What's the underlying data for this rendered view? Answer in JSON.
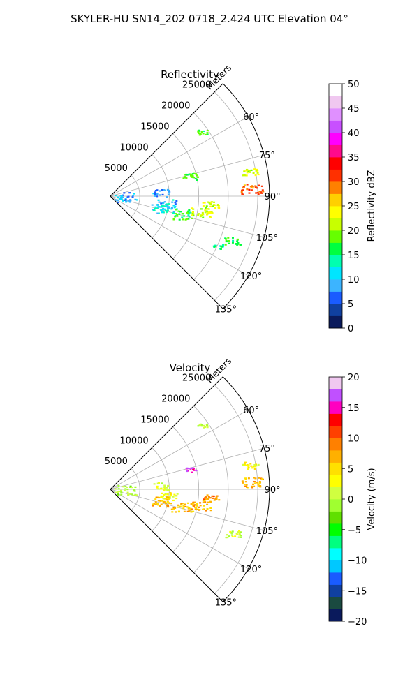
{
  "figure": {
    "title": "SKYLER-HU  SN14_202  0718_2.424 UTC Elevation 04°"
  },
  "chart_data": [
    {
      "type": "heatmap",
      "title": "Reflectivity",
      "projection": "polar sector",
      "radial_axis_label": "Meters",
      "radial_ticks": [
        5000,
        10000,
        15000,
        20000,
        25000
      ],
      "radial_tick_labels": [
        "5000",
        "10000",
        "15000",
        "20000",
        "25000"
      ],
      "rlim": [
        0,
        27000
      ],
      "theta_ticks": [
        60,
        75,
        90,
        105,
        120,
        135
      ],
      "theta_tick_labels": [
        "60°",
        "75°",
        "90°",
        "105°",
        "120°",
        "135°"
      ],
      "theta_range": [
        45,
        135
      ],
      "grid": true,
      "colorbar": {
        "label": "Reflectivity dBZ",
        "range": [
          0,
          50
        ],
        "ticks": [
          0,
          5,
          10,
          15,
          20,
          25,
          30,
          35,
          40,
          45,
          50
        ],
        "tick_labels": [
          "0",
          "5",
          "10",
          "15",
          "20",
          "25",
          "30",
          "35",
          "40",
          "45",
          "50"
        ],
        "colors": [
          "#0a1a5c",
          "#1040a0",
          "#1a5cff",
          "#3cb4ff",
          "#00e5ff",
          "#00ffb0",
          "#00ff40",
          "#66ff00",
          "#c8ff00",
          "#ffff00",
          "#ffd000",
          "#ff8000",
          "#ff3000",
          "#ff0000",
          "#ff0a8c",
          "#ff00ff",
          "#c850ff",
          "#e090ff",
          "#f0c8f0",
          "#ffffff"
        ]
      },
      "echoes": [
        {
          "azimuth": 98,
          "range": 9500,
          "value": 10,
          "size": 3
        },
        {
          "azimuth": 103,
          "range": 9000,
          "value": 12,
          "size": 3
        },
        {
          "azimuth": 86,
          "range": 8500,
          "value": 8,
          "size": 2
        },
        {
          "azimuth": 104,
          "range": 12500,
          "value": 17,
          "size": 3
        },
        {
          "azimuth": 100,
          "range": 15500,
          "value": 22,
          "size": 3
        },
        {
          "azimuth": 95,
          "range": 17000,
          "value": 22,
          "size": 2
        },
        {
          "azimuth": 87,
          "range": 24000,
          "value": 30,
          "size": 3
        },
        {
          "azimuth": 80,
          "range": 24000,
          "value": 22,
          "size": 2
        },
        {
          "azimuth": 76,
          "range": 14000,
          "value": 17,
          "size": 2
        },
        {
          "azimuth": 110,
          "range": 22000,
          "value": 17,
          "size": 2
        },
        {
          "azimuth": 55,
          "range": 19000,
          "value": 17,
          "size": 1
        },
        {
          "azimuth": 115,
          "range": 20000,
          "value": 14,
          "size": 1
        },
        {
          "azimuth": 92,
          "range": 2500,
          "value": 9,
          "size": 3
        }
      ]
    },
    {
      "type": "heatmap",
      "title": "Velocity",
      "projection": "polar sector",
      "radial_axis_label": "Meters",
      "radial_ticks": [
        5000,
        10000,
        15000,
        20000,
        25000
      ],
      "radial_tick_labels": [
        "5000",
        "10000",
        "15000",
        "20000",
        "25000"
      ],
      "rlim": [
        0,
        27000
      ],
      "theta_ticks": [
        60,
        75,
        90,
        105,
        120,
        135
      ],
      "theta_tick_labels": [
        "60°",
        "75°",
        "90°",
        "105°",
        "120°",
        "135°"
      ],
      "theta_range": [
        45,
        135
      ],
      "grid": true,
      "colorbar": {
        "label": "Velocity (m/s)",
        "range": [
          -20,
          20
        ],
        "ticks": [
          -20,
          -15,
          -10,
          -5,
          0,
          5,
          10,
          15,
          20
        ],
        "tick_labels": [
          "−20",
          "−15",
          "−10",
          "−5",
          "0",
          "5",
          "10",
          "15",
          "20"
        ],
        "colors": [
          "#0a1a5c",
          "#1a4a40",
          "#1040a0",
          "#1a5cff",
          "#00c8ff",
          "#00ffff",
          "#00ff80",
          "#00ff00",
          "#60e000",
          "#a0ff30",
          "#d0ff40",
          "#ffff00",
          "#ffe000",
          "#ffb000",
          "#ff8000",
          "#ff4000",
          "#ff0000",
          "#ff00c0",
          "#c050ff",
          "#f0c8f0"
        ]
      },
      "echoes": [
        {
          "azimuth": 98,
          "range": 9500,
          "value": 3,
          "size": 3
        },
        {
          "azimuth": 103,
          "range": 9000,
          "value": 6,
          "size": 3
        },
        {
          "azimuth": 86,
          "range": 8500,
          "value": 1,
          "size": 2
        },
        {
          "azimuth": 104,
          "range": 12500,
          "value": 6,
          "size": 3
        },
        {
          "azimuth": 100,
          "range": 15500,
          "value": 7,
          "size": 3
        },
        {
          "azimuth": 95,
          "range": 17000,
          "value": 8,
          "size": 2
        },
        {
          "azimuth": 87,
          "range": 24000,
          "value": 7,
          "size": 3
        },
        {
          "azimuth": 80,
          "range": 24000,
          "value": 3,
          "size": 2
        },
        {
          "azimuth": 76,
          "range": 14000,
          "value": 16,
          "size": 1
        },
        {
          "azimuth": 110,
          "range": 22000,
          "value": 1,
          "size": 2
        },
        {
          "azimuth": 55,
          "range": 19000,
          "value": 1,
          "size": 1
        },
        {
          "azimuth": 92,
          "range": 2500,
          "value": 0,
          "size": 3
        }
      ]
    }
  ]
}
